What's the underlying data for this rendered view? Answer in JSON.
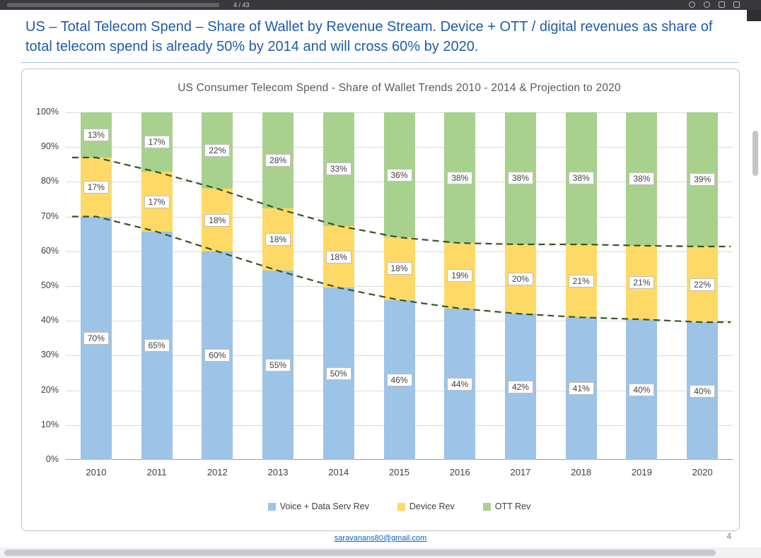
{
  "toolbar": {
    "page_indicator": "4 / 43",
    "icons": [
      "rotate-icon",
      "fit-page-icon",
      "download-icon",
      "print-icon"
    ]
  },
  "slide": {
    "heading": "US – Total Telecom Spend – Share of Wallet by Revenue Stream. Device + OTT / digital revenues as share of total telecom spend is already 50% by 2014 and will cross 60% by 2020.",
    "footer_email": "saravanans80@gmail.com",
    "page_number": "4"
  },
  "chart_data": {
    "type": "bar",
    "stacked": true,
    "percent_stacked": true,
    "title": "US Consumer Telecom Spend - Share of Wallet Trends 2010 - 2014 & Projection to 2020",
    "categories": [
      "2010",
      "2011",
      "2012",
      "2013",
      "2014",
      "2015",
      "2016",
      "2017",
      "2018",
      "2019",
      "2020"
    ],
    "series": [
      {
        "name": "Voice + Data Serv Rev",
        "color": "#9DC3E6",
        "values": [
          70,
          65,
          60,
          55,
          50,
          46,
          44,
          42,
          41,
          40,
          40
        ]
      },
      {
        "name": "Device Rev",
        "color": "#FFD966",
        "values": [
          17,
          17,
          18,
          18,
          18,
          18,
          19,
          20,
          21,
          21,
          22
        ]
      },
      {
        "name": "OTT Rev",
        "color": "#A9D18E",
        "values": [
          13,
          17,
          22,
          28,
          33,
          36,
          38,
          38,
          38,
          38,
          39
        ]
      }
    ],
    "data_label_unit": "%",
    "y_ticks": [
      "100%",
      "90%",
      "80%",
      "70%",
      "60%",
      "50%",
      "40%",
      "30%",
      "20%",
      "10%",
      "0%"
    ],
    "ylim": [
      0,
      100
    ],
    "grid": true,
    "legend_position": "bottom",
    "trend_lines": {
      "color": "#375623",
      "style": "dashed",
      "description": "Two dashed projection lines tracing the top of the Voice + Data Serv Rev segment and the top of the Device Rev segment across all years"
    }
  }
}
